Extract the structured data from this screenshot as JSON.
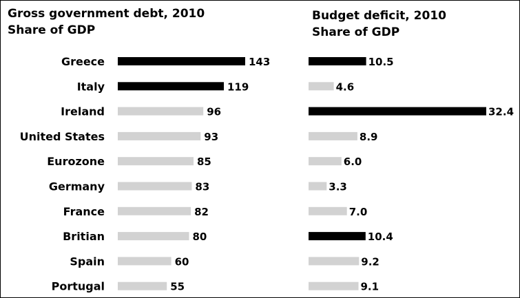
{
  "chart_data": [
    {
      "type": "bar",
      "orientation": "horizontal",
      "title_line1": "Gross government debt, 2010",
      "title_line2": "Share of GDP",
      "categories": [
        "Greece",
        "Italy",
        "Ireland",
        "United States",
        "Eurozone",
        "Germany",
        "France",
        "Britian",
        "Spain",
        "Portugal"
      ],
      "values": [
        143,
        119,
        96,
        93,
        85,
        83,
        82,
        80,
        60,
        55
      ],
      "value_labels": [
        "143",
        "119",
        "96",
        "93",
        "85",
        "83",
        "82",
        "80",
        "60",
        "55"
      ],
      "highlighted": [
        true,
        true,
        false,
        false,
        false,
        false,
        false,
        false,
        false,
        false
      ],
      "colors": {
        "highlight": "#000000",
        "faded": "#d2d2d2"
      },
      "xlim": [
        0,
        143
      ]
    },
    {
      "type": "bar",
      "orientation": "horizontal",
      "title_line1": "Budget deficit, 2010",
      "title_line2": "Share of GDP",
      "categories": [
        "Greece",
        "Italy",
        "Ireland",
        "United States",
        "Eurozone",
        "Germany",
        "France",
        "Britian",
        "Spain",
        "Portugal"
      ],
      "values": [
        10.5,
        4.6,
        32.4,
        8.9,
        6.0,
        3.3,
        7.0,
        10.4,
        9.2,
        9.1
      ],
      "value_labels": [
        "10.5",
        "4.6",
        "32.4",
        "8.9",
        "6.0",
        "3.3",
        "7.0",
        "10.4",
        "9.2",
        "9.1"
      ],
      "highlighted": [
        true,
        false,
        true,
        false,
        false,
        false,
        false,
        true,
        false,
        false
      ],
      "colors": {
        "highlight": "#000000",
        "faded": "#d2d2d2"
      },
      "xlim": [
        0,
        32.4
      ]
    }
  ]
}
